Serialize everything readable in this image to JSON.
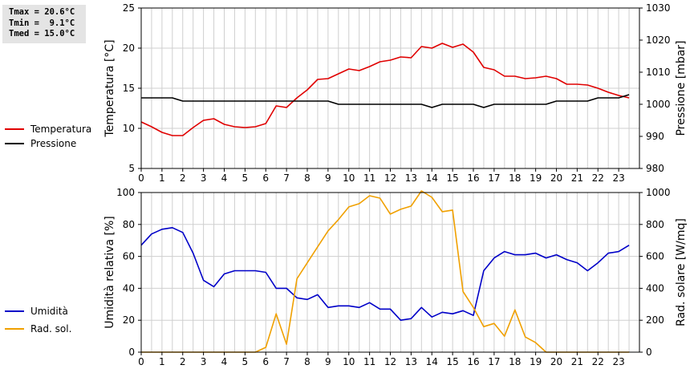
{
  "stats": {
    "line1": "Tmax = 20.6°C",
    "line2": "Tmin =  9.1°C",
    "line3": "Tmed = 15.0°C"
  },
  "legend": {
    "top": [
      {
        "label": "Temperatura",
        "color": "#e00000"
      },
      {
        "label": "Pressione",
        "color": "#000000"
      }
    ],
    "bottom": [
      {
        "label": "Umidità",
        "color": "#0000c8"
      },
      {
        "label": "Rad. sol.",
        "color": "#f0a000"
      }
    ]
  },
  "chart_data": [
    {
      "type": "line",
      "xlabel": "",
      "x_ticks": [
        "0",
        "1",
        "2",
        "3",
        "4",
        "5",
        "6",
        "7",
        "8",
        "9",
        "10",
        "11",
        "12",
        "13",
        "14",
        "15",
        "16",
        "17",
        "18",
        "19",
        "20",
        "21",
        "22",
        "23"
      ],
      "xlim": [
        0,
        24
      ],
      "grid": true,
      "left_axis": {
        "label": "Temperatura [°C]",
        "ylim": [
          5,
          25
        ],
        "ticks": [
          5,
          10,
          15,
          20,
          25
        ]
      },
      "right_axis": {
        "label": "Pressione [mbar]",
        "ylim": [
          980,
          1030
        ],
        "ticks": [
          980,
          990,
          1000,
          1010,
          1020,
          1030
        ]
      },
      "series": [
        {
          "name": "Temperatura",
          "axis": "left",
          "color": "#e00000",
          "x": [
            0,
            0.5,
            1,
            1.5,
            2,
            2.5,
            3,
            3.5,
            4,
            4.5,
            5,
            5.5,
            6,
            6.5,
            7,
            7.5,
            8,
            8.5,
            9,
            9.5,
            10,
            10.5,
            11,
            11.5,
            12,
            12.5,
            13,
            13.5,
            14,
            14.5,
            15,
            15.5,
            16,
            16.5,
            17,
            17.5,
            18,
            18.5,
            19,
            19.5,
            20,
            20.5,
            21,
            21.5,
            22,
            22.5,
            23,
            23.5
          ],
          "y": [
            10.8,
            10.2,
            9.5,
            9.1,
            9.1,
            10.1,
            11.0,
            11.2,
            10.5,
            10.2,
            10.1,
            10.2,
            10.6,
            12.8,
            12.6,
            13.8,
            14.8,
            16.1,
            16.2,
            16.8,
            17.4,
            17.2,
            17.7,
            18.3,
            18.5,
            18.9,
            18.8,
            20.2,
            20.0,
            20.6,
            20.1,
            20.5,
            19.5,
            17.6,
            17.3,
            16.5,
            16.5,
            16.2,
            16.3,
            16.5,
            16.2,
            15.5,
            15.5,
            15.4,
            15.0,
            14.5,
            14.1,
            13.8
          ]
        },
        {
          "name": "Pressione",
          "axis": "right",
          "color": "#000000",
          "x": [
            0,
            0.5,
            1,
            1.5,
            2,
            2.5,
            3,
            3.5,
            4,
            4.5,
            5,
            5.5,
            6,
            6.5,
            7,
            7.5,
            8,
            8.5,
            9,
            9.5,
            10,
            10.5,
            11,
            11.5,
            12,
            12.5,
            13,
            13.5,
            14,
            14.5,
            15,
            15.5,
            16,
            16.5,
            17,
            17.5,
            18,
            18.5,
            19,
            19.5,
            20,
            20.5,
            21,
            21.5,
            22,
            22.5,
            23,
            23.5
          ],
          "y": [
            1002,
            1002,
            1002,
            1002,
            1001,
            1001,
            1001,
            1001,
            1001,
            1001,
            1001,
            1001,
            1001,
            1001,
            1001,
            1001,
            1001,
            1001,
            1001,
            1000,
            1000,
            1000,
            1000,
            1000,
            1000,
            1000,
            1000,
            1000,
            999,
            1000,
            1000,
            1000,
            1000,
            999,
            1000,
            1000,
            1000,
            1000,
            1000,
            1000,
            1001,
            1001,
            1001,
            1001,
            1002,
            1002,
            1002,
            1003
          ]
        }
      ]
    },
    {
      "type": "line",
      "xlabel": "",
      "x_ticks": [
        "0",
        "1",
        "2",
        "3",
        "4",
        "5",
        "6",
        "7",
        "8",
        "9",
        "10",
        "11",
        "12",
        "13",
        "14",
        "15",
        "16",
        "17",
        "18",
        "19",
        "20",
        "21",
        "22",
        "23"
      ],
      "xlim": [
        0,
        24
      ],
      "grid": true,
      "left_axis": {
        "label": "Umidità relativa [%]",
        "ylim": [
          0,
          100
        ],
        "ticks": [
          0,
          20,
          40,
          60,
          80,
          100
        ]
      },
      "right_axis": {
        "label": "Rad. solare [W/mq]",
        "ylim": [
          0,
          1000
        ],
        "ticks": [
          0,
          200,
          400,
          600,
          800,
          1000
        ]
      },
      "series": [
        {
          "name": "Umidità",
          "axis": "left",
          "color": "#0000c8",
          "x": [
            0,
            0.5,
            1,
            1.5,
            2,
            2.5,
            3,
            3.5,
            4,
            4.5,
            5,
            5.5,
            6,
            6.5,
            7,
            7.5,
            8,
            8.5,
            9,
            9.5,
            10,
            10.5,
            11,
            11.5,
            12,
            12.5,
            13,
            13.5,
            14,
            14.5,
            15,
            15.5,
            16,
            16.5,
            17,
            17.5,
            18,
            18.5,
            19,
            19.5,
            20,
            20.5,
            21,
            21.5,
            22,
            22.5,
            23,
            23.5
          ],
          "y": [
            67,
            74,
            77,
            78,
            75,
            62,
            45,
            41,
            49,
            51,
            51,
            51,
            50,
            40,
            40,
            34,
            33,
            36,
            28,
            29,
            29,
            28,
            31,
            27,
            27,
            20,
            21,
            28,
            22,
            25,
            24,
            26,
            23,
            51,
            59,
            63,
            61,
            61,
            62,
            59,
            61,
            58,
            56,
            51,
            56,
            62,
            63,
            67
          ]
        },
        {
          "name": "Rad. sol.",
          "axis": "right",
          "color": "#f0a000",
          "x": [
            0,
            0.5,
            1,
            1.5,
            2,
            2.5,
            3,
            3.5,
            4,
            4.5,
            5,
            5.5,
            6,
            6.5,
            7,
            7.5,
            8,
            8.5,
            9,
            9.5,
            10,
            10.5,
            11,
            11.5,
            12,
            12.5,
            13,
            13.5,
            14,
            14.5,
            15,
            15.5,
            16,
            16.5,
            17,
            17.5,
            18,
            18.5,
            19,
            19.5,
            20,
            20.5,
            21,
            21.5,
            22,
            22.5,
            23,
            23.5
          ],
          "y": [
            0,
            0,
            0,
            0,
            0,
            0,
            0,
            0,
            0,
            0,
            0,
            0,
            30,
            240,
            50,
            460,
            560,
            660,
            760,
            830,
            910,
            930,
            980,
            965,
            865,
            895,
            915,
            1010,
            970,
            880,
            890,
            380,
            280,
            160,
            180,
            100,
            265,
            95,
            60,
            0,
            0,
            0,
            0,
            0,
            0,
            0,
            0,
            0
          ]
        }
      ]
    }
  ]
}
